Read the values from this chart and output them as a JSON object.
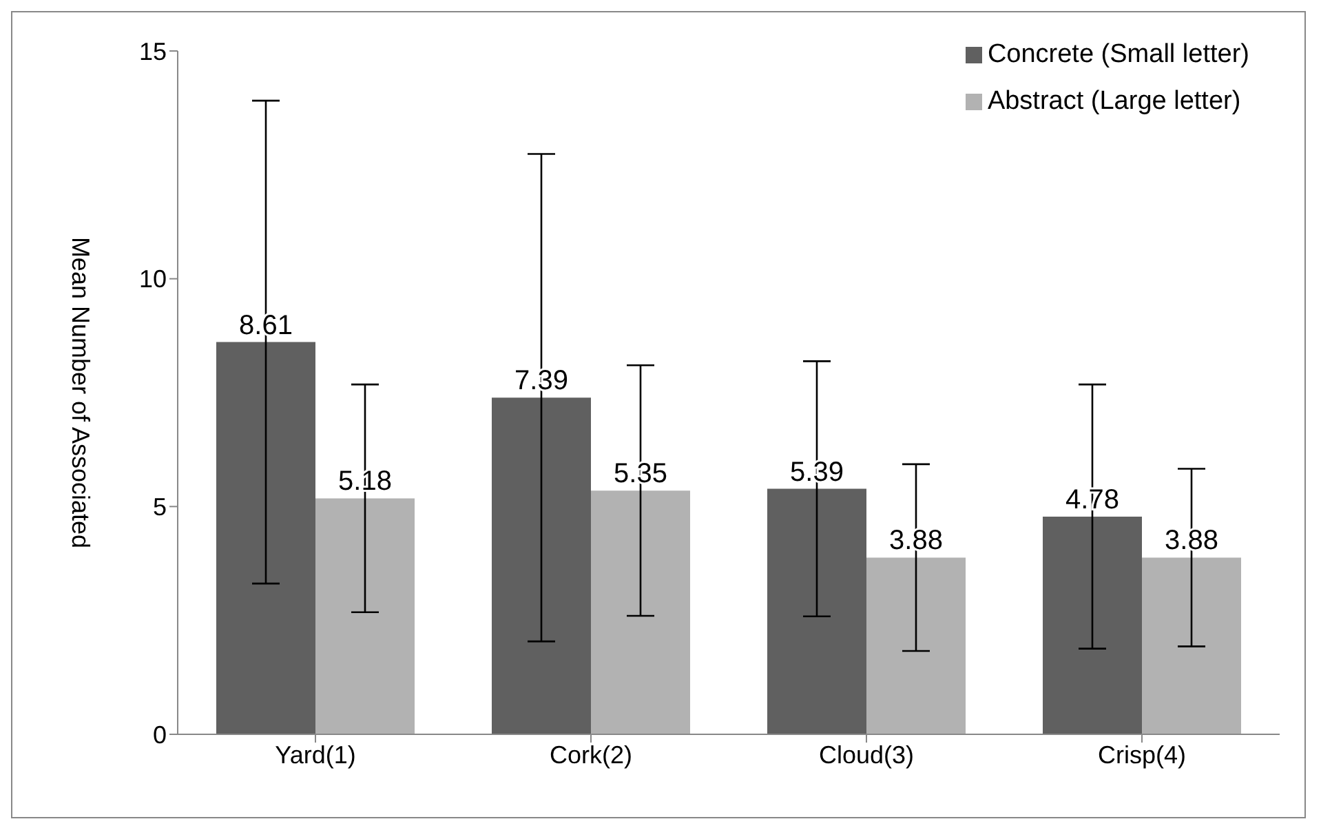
{
  "chart_data": {
    "type": "bar",
    "ylabel": "Mean Number  of Associated",
    "categories": [
      "Yard(1)",
      "Cork(2)",
      "Cloud(3)",
      "Crisp(4)"
    ],
    "series": [
      {
        "name": "Concrete (Small letter)",
        "color": "#606060",
        "values": [
          8.61,
          7.39,
          5.39,
          4.78
        ],
        "errors": [
          5.3,
          5.35,
          2.8,
          2.9
        ]
      },
      {
        "name": "Abstract (Large letter)",
        "color": "#b2b2b2",
        "values": [
          5.18,
          5.35,
          3.88,
          3.88
        ],
        "errors": [
          2.5,
          2.75,
          2.05,
          1.95
        ]
      }
    ],
    "ylim": [
      0,
      15
    ],
    "yticks": [
      0,
      5,
      10,
      15
    ],
    "grid": false,
    "legend": "top right",
    "data_labels": true
  }
}
